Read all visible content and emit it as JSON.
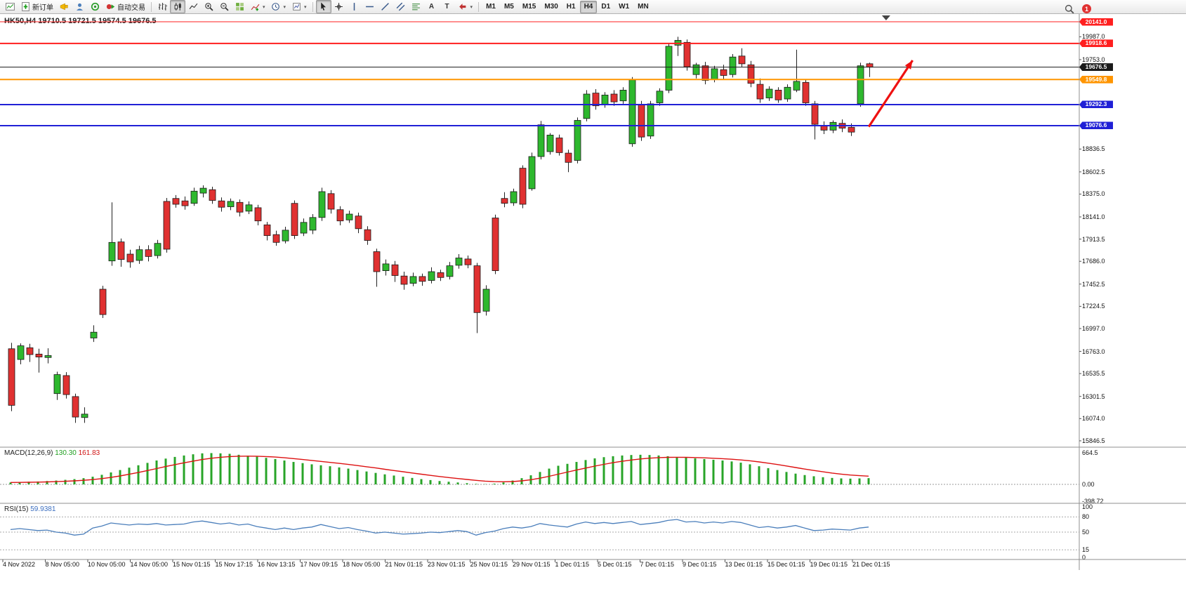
{
  "toolbar": {
    "groups": [
      {
        "name": "trade",
        "items": [
          {
            "name": "chart-window",
            "icon": "chart-window-icon"
          },
          {
            "name": "new-order",
            "icon": "new-order-icon",
            "label": "新订单"
          },
          {
            "name": "megaphone",
            "icon": "megaphone-icon"
          },
          {
            "name": "community",
            "icon": "community-icon"
          },
          {
            "name": "mql5",
            "icon": "mql5-icon"
          },
          {
            "name": "auto-trading",
            "icon": "auto-trading-icon",
            "label": "自动交易"
          }
        ]
      },
      {
        "name": "chart-type",
        "items": [
          {
            "name": "bar-chart",
            "icon": "bars-icon"
          },
          {
            "name": "candlestick-chart",
            "icon": "candles-icon",
            "active": true
          },
          {
            "name": "line-chart",
            "icon": "linechart-icon"
          },
          {
            "name": "zoom-in",
            "icon": "zoom-in-icon"
          },
          {
            "name": "zoom-out",
            "icon": "zoom-out-icon"
          },
          {
            "name": "tile-windows",
            "icon": "tile-windows-icon"
          },
          {
            "name": "indicators",
            "icon": "indicators-icon",
            "dropdown": true
          },
          {
            "name": "periods",
            "icon": "periods-icon",
            "dropdown": true
          },
          {
            "name": "templates",
            "icon": "templates-icon",
            "dropdown": true
          }
        ]
      },
      {
        "name": "drawing-tools",
        "items": [
          {
            "name": "cursor",
            "icon": "cursor-icon",
            "active": true
          },
          {
            "name": "crosshair",
            "icon": "crosshair-icon"
          },
          {
            "name": "vertical-line",
            "icon": "vline-icon"
          },
          {
            "name": "horizontal-line",
            "icon": "hline-icon"
          },
          {
            "name": "trendline",
            "icon": "trendline-icon"
          },
          {
            "name": "equidistant-channel",
            "icon": "channel-icon"
          },
          {
            "name": "fibonacci",
            "icon": "fibo-icon"
          },
          {
            "name": "text",
            "icon": "text-icon",
            "glyph": "A"
          },
          {
            "name": "text-label",
            "icon": "label-icon",
            "glyph": "T"
          },
          {
            "name": "arrows",
            "icon": "shapes-icon",
            "dropdown": true
          }
        ]
      },
      {
        "name": "timeframes",
        "items": [
          {
            "name": "tf-m1",
            "label": "M1"
          },
          {
            "name": "tf-m5",
            "label": "M5"
          },
          {
            "name": "tf-m15",
            "label": "M15"
          },
          {
            "name": "tf-m30",
            "label": "M30"
          },
          {
            "name": "tf-h1",
            "label": "H1"
          },
          {
            "name": "tf-h4",
            "label": "H4",
            "active": true
          },
          {
            "name": "tf-d1",
            "label": "D1"
          },
          {
            "name": "tf-w1",
            "label": "W1"
          },
          {
            "name": "tf-mn",
            "label": "MN"
          }
        ]
      }
    ],
    "right": [
      {
        "name": "search",
        "icon": "search-icon"
      },
      {
        "name": "notifications",
        "badge": "1"
      }
    ]
  },
  "chart": {
    "title": "HK50,H4 19710.5 19721.5 19574.5 19676.5"
  },
  "levels": [
    {
      "price": 20141.0,
      "label": "20141.0",
      "color": "#ff1f1f",
      "width": 1
    },
    {
      "price": 19918.6,
      "label": "19918.6",
      "color": "#ff1f1f",
      "width": 2
    },
    {
      "price": 19676.5,
      "label": "19676.5",
      "color": "#1a1a1a",
      "width": 1
    },
    {
      "price": 19549.8,
      "label": "19549.8",
      "color": "#ff9500",
      "width": 2
    },
    {
      "price": 19292.3,
      "label": "19292.3",
      "color": "#2020d6",
      "width": 2
    },
    {
      "price": 19076.6,
      "label": "19076.6",
      "color": "#2020d6",
      "width": 2
    }
  ],
  "price_axis_ticks": [
    "19987.0",
    "19753.0",
    "18836.5",
    "18602.5",
    "18375.0",
    "18141.0",
    "17913.5",
    "17686.0",
    "17452.5",
    "17224.5",
    "16997.0",
    "16763.0",
    "16535.5",
    "16301.5",
    "16074.0",
    "15846.5"
  ],
  "macd_axis": [
    "664.5",
    "0.00",
    "-398.72"
  ],
  "rsi_axis": [
    "100",
    "80",
    "50",
    "15",
    "0"
  ],
  "panes": {
    "macd_label": "MACD(12,26,9)",
    "macd_value": "130.30",
    "macd_signal": "161.83",
    "rsi_label": "RSI(15)",
    "rsi_value": "59.9381"
  },
  "chart_data": {
    "type": "candlestick",
    "symbol": "HK50",
    "timeframe": "H4",
    "ohlc_current": {
      "open": 19710.5,
      "high": 19721.5,
      "low": 19574.5,
      "close": 19676.5
    },
    "ylim": [
      15790,
      20220
    ],
    "grid": "off",
    "colors": {
      "up": "#2eb82e",
      "down": "#e03131",
      "wick": "#222222",
      "macd_hist": "#28a428",
      "macd_signal": "#dd1111",
      "rsi_line": "#4a7ebb",
      "arrow": "#ee1111"
    },
    "candles": [
      [
        16790,
        16850,
        16150,
        16210
      ],
      [
        16680,
        16845,
        16630,
        16820
      ],
      [
        16800,
        16840,
        16655,
        16730
      ],
      [
        16735,
        16790,
        16545,
        16705
      ],
      [
        16700,
        16795,
        16640,
        16720
      ],
      [
        16330,
        16555,
        16265,
        16525
      ],
      [
        16515,
        16550,
        16280,
        16320
      ],
      [
        16300,
        16330,
        16030,
        16090
      ],
      [
        16085,
        16190,
        16030,
        16120
      ],
      [
        16900,
        17030,
        16860,
        16960
      ],
      [
        17400,
        17435,
        17105,
        17140
      ],
      [
        17690,
        18290,
        17640,
        17880
      ],
      [
        17885,
        17920,
        17630,
        17705
      ],
      [
        17760,
        17805,
        17620,
        17680
      ],
      [
        17695,
        17845,
        17660,
        17805
      ],
      [
        17805,
        17850,
        17685,
        17735
      ],
      [
        17745,
        17905,
        17715,
        17870
      ],
      [
        18300,
        18335,
        17775,
        17810
      ],
      [
        18330,
        18365,
        18235,
        18270
      ],
      [
        18305,
        18350,
        18215,
        18255
      ],
      [
        18280,
        18440,
        18255,
        18405
      ],
      [
        18385,
        18465,
        18340,
        18435
      ],
      [
        18420,
        18450,
        18275,
        18310
      ],
      [
        18305,
        18340,
        18195,
        18240
      ],
      [
        18245,
        18330,
        18210,
        18300
      ],
      [
        18290,
        18320,
        18145,
        18190
      ],
      [
        18200,
        18300,
        18170,
        18265
      ],
      [
        18235,
        18265,
        18055,
        18100
      ],
      [
        18060,
        18090,
        17900,
        17950
      ],
      [
        17960,
        18000,
        17845,
        17880
      ],
      [
        17895,
        18040,
        17870,
        18005
      ],
      [
        18280,
        18310,
        17915,
        17950
      ],
      [
        17975,
        18125,
        17945,
        18085
      ],
      [
        18005,
        18170,
        17965,
        18135
      ],
      [
        18135,
        18440,
        18100,
        18400
      ],
      [
        18380,
        18415,
        18175,
        18220
      ],
      [
        18215,
        18250,
        18055,
        18100
      ],
      [
        18110,
        18205,
        18080,
        18170
      ],
      [
        18150,
        18185,
        17975,
        18020
      ],
      [
        18010,
        18045,
        17855,
        17900
      ],
      [
        17785,
        17815,
        17425,
        17580
      ],
      [
        17590,
        17705,
        17540,
        17660
      ],
      [
        17650,
        17690,
        17475,
        17540
      ],
      [
        17535,
        17580,
        17395,
        17450
      ],
      [
        17460,
        17570,
        17430,
        17530
      ],
      [
        17530,
        17560,
        17435,
        17480
      ],
      [
        17490,
        17625,
        17460,
        17580
      ],
      [
        17570,
        17600,
        17485,
        17520
      ],
      [
        17530,
        17680,
        17500,
        17640
      ],
      [
        17645,
        17760,
        17610,
        17720
      ],
      [
        17710,
        17745,
        17615,
        17650
      ],
      [
        17640,
        17670,
        16950,
        17160
      ],
      [
        17175,
        17440,
        17130,
        17400
      ],
      [
        18130,
        18165,
        17555,
        17590
      ],
      [
        18330,
        18395,
        18240,
        18280
      ],
      [
        18285,
        18430,
        18255,
        18400
      ],
      [
        18640,
        18670,
        18230,
        18270
      ],
      [
        18430,
        18800,
        18410,
        18760
      ],
      [
        18760,
        19125,
        18730,
        19085
      ],
      [
        18810,
        19000,
        18780,
        18980
      ],
      [
        18950,
        18985,
        18770,
        18800
      ],
      [
        18795,
        18830,
        18600,
        18700
      ],
      [
        18720,
        19160,
        18690,
        19130
      ],
      [
        19150,
        19440,
        19120,
        19400
      ],
      [
        19410,
        19450,
        19240,
        19280
      ],
      [
        19290,
        19420,
        19260,
        19390
      ],
      [
        19400,
        19440,
        19280,
        19320
      ],
      [
        19330,
        19470,
        19300,
        19440
      ],
      [
        18890,
        19575,
        18860,
        19545
      ],
      [
        19290,
        19330,
        18920,
        18960
      ],
      [
        18970,
        19330,
        18940,
        19300
      ],
      [
        19310,
        19460,
        19280,
        19430
      ],
      [
        19440,
        19920,
        19410,
        19890
      ],
      [
        19900,
        19987,
        19790,
        19950
      ],
      [
        19930,
        19960,
        19640,
        19680
      ],
      [
        19600,
        19720,
        19560,
        19700
      ],
      [
        19690,
        19730,
        19500,
        19540
      ],
      [
        19550,
        19690,
        19520,
        19660
      ],
      [
        19650,
        19700,
        19550,
        19590
      ],
      [
        19600,
        19810,
        19570,
        19780
      ],
      [
        19790,
        19870,
        19680,
        19710
      ],
      [
        19700,
        19740,
        19470,
        19510
      ],
      [
        19500,
        19560,
        19310,
        19350
      ],
      [
        19360,
        19480,
        19330,
        19450
      ],
      [
        19440,
        19470,
        19310,
        19340
      ],
      [
        19350,
        19500,
        19320,
        19470
      ],
      [
        19440,
        19855,
        19420,
        19530
      ],
      [
        19520,
        19545,
        19280,
        19310
      ],
      [
        19300,
        19330,
        18935,
        19090
      ],
      [
        19080,
        19120,
        18990,
        19030
      ],
      [
        19030,
        19130,
        19000,
        19110
      ],
      [
        19100,
        19140,
        19010,
        19050
      ],
      [
        19060,
        19100,
        18970,
        19010
      ],
      [
        19300,
        19721,
        19270,
        19690
      ],
      [
        19710.5,
        19721.5,
        19574.5,
        19676.5
      ]
    ],
    "macd_histogram": [
      40,
      45,
      55,
      60,
      70,
      80,
      95,
      110,
      130,
      160,
      200,
      250,
      300,
      350,
      400,
      450,
      500,
      540,
      575,
      605,
      630,
      650,
      655,
      650,
      640,
      620,
      600,
      580,
      555,
      530,
      500,
      470,
      445,
      420,
      400,
      380,
      355,
      330,
      300,
      270,
      240,
      210,
      185,
      160,
      135,
      110,
      90,
      70,
      55,
      40,
      25,
      10,
      5,
      15,
      40,
      80,
      130,
      190,
      260,
      330,
      390,
      430,
      470,
      510,
      545,
      570,
      590,
      605,
      615,
      620,
      615,
      605,
      590,
      575,
      560,
      545,
      530,
      515,
      500,
      480,
      455,
      420,
      380,
      340,
      300,
      260,
      225,
      195,
      170,
      150,
      135,
      125,
      120,
      125,
      130.3
    ],
    "rsi_values": [
      55,
      57,
      55,
      53,
      54,
      50,
      48,
      44,
      46,
      58,
      62,
      68,
      66,
      64,
      66,
      65,
      67,
      64,
      65,
      66,
      70,
      72,
      69,
      66,
      68,
      64,
      66,
      61,
      58,
      55,
      58,
      55,
      58,
      60,
      65,
      61,
      57,
      59,
      55,
      52,
      48,
      50,
      48,
      46,
      47,
      48,
      50,
      49,
      51,
      53,
      51,
      44,
      49,
      52,
      57,
      60,
      58,
      61,
      67,
      64,
      62,
      60,
      66,
      70,
      67,
      69,
      67,
      69,
      71,
      65,
      67,
      69,
      73,
      75,
      70,
      71,
      68,
      70,
      68,
      71,
      69,
      64,
      59,
      61,
      58,
      60,
      63,
      58,
      53,
      54,
      56,
      55,
      54,
      58,
      59.94
    ],
    "rsi_levels": [
      80,
      50,
      15
    ],
    "x_labels": [
      "4 Nov 2022",
      "8 Nov 05:00",
      "10 Nov 05:00",
      "14 Nov 05:00",
      "15 Nov 01:15",
      "15 Nov 17:15",
      "16 Nov 13:15",
      "17 Nov 09:15",
      "18 Nov 05:00",
      "21 Nov 01:15",
      "23 Nov 01:15",
      "25 Nov 01:15",
      "29 Nov 01:15",
      "1 Dec 01:15",
      "5 Dec 01:15",
      "7 Dec 01:15",
      "9 Dec 01:15",
      "13 Dec 01:15",
      "15 Dec 01:15",
      "19 Dec 01:15",
      "21 Dec 01:15"
    ],
    "annotations": [
      {
        "type": "arrow",
        "bar_from": 93.9,
        "price_from": 19065,
        "bar_to": 98.7,
        "price_to": 19745
      },
      {
        "type": "shift-marker",
        "bar": 95.8
      }
    ]
  }
}
